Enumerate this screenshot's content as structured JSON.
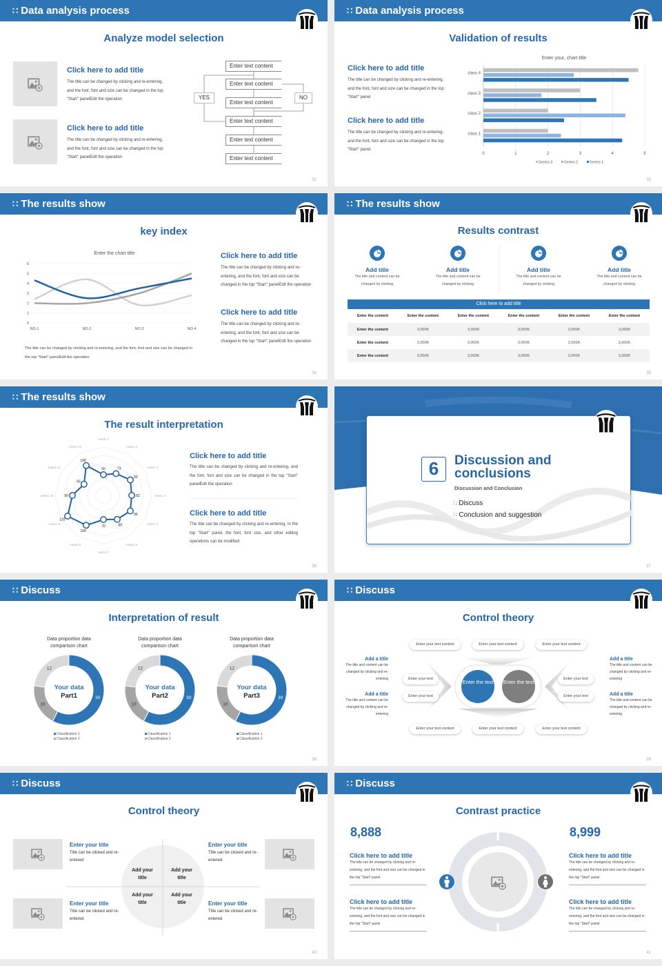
{
  "colors": {
    "primary": "#2e75b6",
    "title": "#2566a8",
    "series_dark": "#2e75b6",
    "series_light": "#8db4e2",
    "gray": "#bfbfbf",
    "mid_gray": "#a5a5a5",
    "dark_gray": "#7f7f7f"
  },
  "slides": {
    "s32": {
      "header": "Data analysis process",
      "title": "Analyze model selection",
      "page": "32",
      "items": [
        {
          "title": "Click here to add title",
          "body": "The title can be changed by clicking and re-entering, and the font, font and size can be changed in the top \"Start\" panelEdit the operation"
        },
        {
          "title": "Click here to add title",
          "body": "The title can be changed by clicking and re-entering, and the font, font and size can be changed in the top \"Start\" panelEdit the operation"
        }
      ],
      "flow": {
        "boxes": [
          "Enter text content",
          "Enter text content",
          "Enter text content",
          "Enter text content",
          "Enter text content",
          "Enter text content"
        ],
        "yes": "YES",
        "no": "NO"
      }
    },
    "s33": {
      "header": "Data analysis process",
      "title": "Validation of results",
      "page": "33",
      "items": [
        {
          "title": "Click here to add title",
          "body": "The title can be changed by clicking and re-entering, and the font, font and size can be changed in the top \"Start\" panel"
        },
        {
          "title": "Click here to add title",
          "body": "The title can be changed by clicking and re-entering, and the font, font and size can be changed in the top \"Start\" panel"
        }
      ]
    },
    "s34": {
      "header": "The results show",
      "title": "key index",
      "page": "34",
      "note": "The title can be changed by clicking and re-entering, and the font, font and size can be changed in the top \"Start\" panelEdit the operation",
      "items": [
        {
          "title": "Click here to add title",
          "body": "The title can be changed by clicking and re-entering, and the font, font and size can be changed in the top \"Start\" panelEdit the operation"
        },
        {
          "title": "Click here to add title",
          "body": "The title can be changed by clicking and re-entering, and the font, font and size can be changed in the top \"Start\" panelEdit the operation"
        }
      ]
    },
    "s35": {
      "header": "The results show",
      "title": "Results contrast",
      "page": "35",
      "cards": [
        {
          "icon": "pie-chart-icon",
          "title": "Add title",
          "body": "The title and content can be changed by clicking"
        },
        {
          "icon": "pie-chart-icon",
          "title": "Add title",
          "body": "The title and content can be changed by clicking"
        },
        {
          "icon": "pie-chart-icon",
          "title": "Add title",
          "body": "The title and content can be changed by clicking"
        },
        {
          "icon": "pie-chart-icon",
          "title": "Add title",
          "body": "The title and content can be changed by clicking"
        }
      ],
      "table": {
        "caption": "Click here to add title",
        "header": [
          "Enter the content",
          "Enter the content",
          "Enter the content",
          "Enter the content",
          "Enter the content",
          "Enter the content"
        ],
        "rows": [
          [
            "Enter the content",
            "3,000K",
            "3,000K",
            "3,000K",
            "3,000K",
            "3,000K"
          ],
          [
            "Enter the content",
            "3,000K",
            "3,000K",
            "3,000K",
            "3,000K",
            "3,000K"
          ],
          [
            "Enter the content",
            "3,000K",
            "3,000K",
            "3,000K",
            "3,000K",
            "3,000K"
          ]
        ]
      }
    },
    "s36": {
      "header": "The results show",
      "title": "The result interpretation",
      "page": "36",
      "items": [
        {
          "title": "Click here to add title",
          "body": "The title can be changed by clicking and re-entering, and the font, font and size can be changed in the top \"Start\" panelEdit the operation"
        },
        {
          "title": "Click here to add title",
          "body": "The title can be changed by clicking and re-entering. In the top \"Start\" panel, the font, font size, and other editing operations can be modified"
        }
      ]
    },
    "s37": {
      "number": "6",
      "title_line1": "Discussion and",
      "title_line2": "conclusions",
      "subtitle": "Discussion and Conclusion",
      "items": [
        "Discuss",
        "Conclusion and suggestion"
      ],
      "page": "37"
    },
    "s38": {
      "header": "Discuss",
      "title": "Interpretation of result",
      "page": "38"
    },
    "s39": {
      "header": "Discuss",
      "title": "Control theory",
      "page": "39",
      "top_pills": [
        "Enter your text content",
        "Enter your text content",
        "Enter your text content"
      ],
      "bottom_pills": [
        "Enter your text content",
        "Enter your text content",
        "Enter your text content"
      ],
      "left_pills": [
        "Enter your text",
        "Enter your text"
      ],
      "right_pills": [
        "Enter your text",
        "Enter your text"
      ],
      "circle_blue": "Enter the text",
      "circle_gray": "Enter the text",
      "left_items": [
        {
          "title": "Add a title",
          "body": "The title and content can be changed by clicking and re-entering"
        },
        {
          "title": "Add a title",
          "body": "The title and content can be changed by clicking and re-entering"
        }
      ],
      "right_items": [
        {
          "title": "Add a title",
          "body": "The title and content can be changed by clicking and re-entering"
        },
        {
          "title": "Add a title",
          "body": "The title and content can be changed by clicking and re-entering"
        }
      ]
    },
    "s40": {
      "header": "Discuss",
      "title": "Control theory",
      "page": "40",
      "items": [
        {
          "title": "Enter your title",
          "body": "Title can be clicked and re-entered"
        },
        {
          "title": "Enter your title",
          "body": "Title can be clicked and re-entered"
        },
        {
          "title": "Enter your title",
          "body": "Title can be clicked and re-entered"
        },
        {
          "title": "Enter your title",
          "body": "Title can be clicked and re-entered"
        }
      ],
      "quadrants": [
        "Add your title",
        "Add your title",
        "Add your title",
        "Add your title"
      ]
    },
    "s41": {
      "header": "Discuss",
      "title": "Contrast practice",
      "page": "41",
      "left_number": "8,888",
      "right_number": "8,999",
      "left_items": [
        {
          "title": "Click here to add title",
          "body": "The title can be changed by clicking and re-entering, and the font and size can be changed in the top \"Start\" panel"
        },
        {
          "title": "Click here to add title",
          "body": "The title can be changed by clicking and re-entering, and the font and size can be changed in the top \"Start\" panel"
        }
      ],
      "right_items": [
        {
          "title": "Click here to add title",
          "body": "The title can be changed by clicking and re-entering, and the font and size can be changed in the top \"Start\" panel"
        },
        {
          "title": "Click here to add title",
          "body": "The title can be changed by clicking and re-entering, and the font and size can be changed in the top \"Start\" panel"
        }
      ],
      "icons": [
        "male-icon",
        "female-icon"
      ]
    }
  },
  "chart_data": [
    {
      "type": "bar",
      "orientation": "horizontal",
      "title": "Enter your, chart title",
      "categories": [
        "class 1",
        "class 2",
        "class 3",
        "class 4"
      ],
      "series": [
        {
          "name": "Series 3",
          "values": [
            2,
            2,
            3,
            4.8
          ],
          "color": "#bfbfbf"
        },
        {
          "name": "Series 2",
          "values": [
            2.4,
            4.4,
            1.8,
            2.8
          ],
          "color": "#8db4e2"
        },
        {
          "name": "Series 1",
          "values": [
            4.3,
            2.5,
            3.5,
            4.5
          ],
          "color": "#2e75b6"
        }
      ],
      "xlim": [
        0,
        5
      ],
      "ticks": [
        "0",
        "1",
        "2",
        "3",
        "4",
        "5"
      ],
      "grid": true,
      "legend": "bottom"
    },
    {
      "type": "line",
      "title": "Enter the chart title",
      "categories": [
        "NO.1",
        "NO.2",
        "NO.3",
        "NO.4"
      ],
      "series": [
        {
          "values": [
            4.3,
            2.5,
            3.5,
            4.5
          ],
          "color": "#1f5fa6"
        },
        {
          "values": [
            2.4,
            4.4,
            1.8,
            2.8
          ],
          "color": "#d0d0d0"
        },
        {
          "values": [
            2,
            2,
            3,
            5
          ],
          "color": "#a5a5a5"
        }
      ],
      "ylim": [
        0,
        6
      ],
      "ticks": [
        "0",
        "1",
        "2",
        "3",
        "4",
        "5",
        "6"
      ],
      "grid": true,
      "smooth": true
    },
    {
      "type": "radar",
      "axes": [
        "metric 1",
        "metric 2",
        "metric 3",
        "metric 4",
        "metric 5",
        "metric 6",
        "metric 7",
        "metric 8",
        "metric 9",
        "metric 10",
        "metric 11",
        "metric 12"
      ],
      "values": [
        60,
        73,
        90,
        82,
        90,
        80,
        70,
        100,
        120,
        90,
        65,
        100
      ],
      "rlim": [
        0,
        140
      ]
    },
    {
      "type": "pie",
      "donut": true,
      "charts": [
        {
          "title": "Data proportion data comparison chart",
          "center_line1": "Your data",
          "center_line2": "Part1",
          "values": [
            30,
            10,
            12
          ]
        },
        {
          "title": "Data proportion data comparison chart",
          "center_line1": "Your data",
          "center_line2": "Part2",
          "values": [
            30,
            10,
            12
          ]
        },
        {
          "title": "Data proportion data comparison chart",
          "center_line1": "Your data",
          "center_line2": "Part3",
          "values": [
            30,
            10,
            12
          ]
        }
      ],
      "colors": [
        "#2e75b6",
        "#a5a5a5",
        "#d9d9d9"
      ],
      "legend": [
        "Classification 1",
        "Classification 2"
      ],
      "legend_position": "bottom"
    }
  ]
}
